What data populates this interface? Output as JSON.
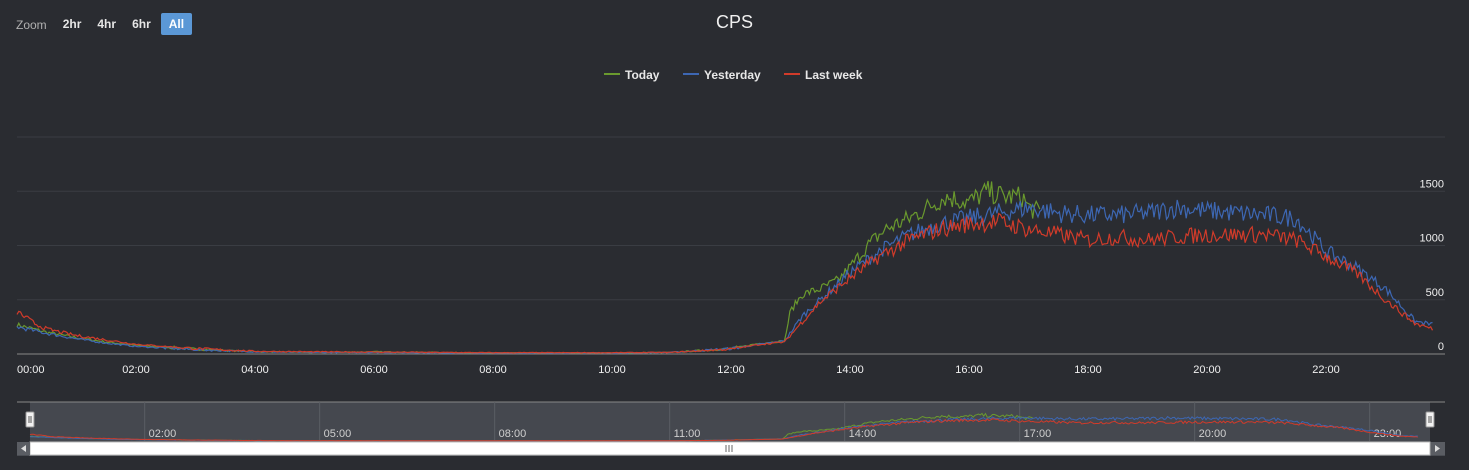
{
  "zoom": {
    "label": "Zoom",
    "buttons": [
      "2hr",
      "4hr",
      "6hr",
      "All"
    ],
    "active": "All"
  },
  "chart_data": {
    "type": "line",
    "title": "CPS",
    "xlabel": "",
    "ylabel": "",
    "x_ticks": [
      "00:00",
      "02:00",
      "04:00",
      "06:00",
      "08:00",
      "10:00",
      "12:00",
      "14:00",
      "16:00",
      "18:00",
      "20:00",
      "22:00"
    ],
    "y_ticks": [
      0,
      500,
      1000,
      1500
    ],
    "ylim": [
      0,
      2000
    ],
    "xlim_hours": [
      0,
      24
    ],
    "grid": true,
    "legend_position": "top-center",
    "navigator_ticks": [
      "02:00",
      "05:00",
      "08:00",
      "11:00",
      "14:00",
      "17:00",
      "20:00",
      "23:00"
    ],
    "series": [
      {
        "name": "Today",
        "color": "#6a9a2e",
        "x_hours": [
          0,
          0.5,
          1,
          1.5,
          2,
          3,
          4,
          5,
          6,
          7,
          8,
          9,
          10,
          11,
          12,
          12.5,
          12.9,
          13.0,
          13.2,
          13.5,
          13.8,
          14.0,
          14.3,
          14.6,
          15.0,
          15.3,
          15.6,
          16.0,
          16.3,
          16.6,
          16.9,
          17.0,
          17.2
        ],
        "values": [
          270,
          200,
          150,
          110,
          80,
          45,
          20,
          15,
          20,
          15,
          10,
          10,
          10,
          15,
          50,
          100,
          120,
          400,
          550,
          600,
          680,
          800,
          1000,
          1150,
          1250,
          1350,
          1450,
          1400,
          1500,
          1450,
          1450,
          1350,
          1300
        ]
      },
      {
        "name": "Yesterday",
        "color": "#3d67b3",
        "x_hours": [
          0,
          0.5,
          1,
          1.5,
          2,
          3,
          4,
          5,
          6,
          7,
          8,
          9,
          10,
          11,
          12,
          12.5,
          12.9,
          13.2,
          13.5,
          14.0,
          14.5,
          15.0,
          15.5,
          16.0,
          16.5,
          17.0,
          17.5,
          18.0,
          18.5,
          19.0,
          19.5,
          20.0,
          20.5,
          21.0,
          21.5,
          22.0,
          22.5,
          23.0,
          23.5,
          23.8
        ],
        "values": [
          250,
          190,
          140,
          100,
          70,
          40,
          20,
          15,
          15,
          12,
          10,
          10,
          10,
          15,
          50,
          90,
          120,
          350,
          500,
          750,
          950,
          1100,
          1200,
          1250,
          1300,
          1350,
          1300,
          1280,
          1280,
          1300,
          1350,
          1320,
          1300,
          1280,
          1250,
          950,
          800,
          600,
          300,
          270
        ]
      },
      {
        "name": "Last week",
        "color": "#d13b2a",
        "x_hours": [
          0,
          0.3,
          0.5,
          1,
          1.5,
          2,
          3,
          4,
          5,
          6,
          7,
          8,
          9,
          10,
          11,
          12,
          12.5,
          12.9,
          13.2,
          13.5,
          14.0,
          14.5,
          15.0,
          15.5,
          16.0,
          16.5,
          17.0,
          17.5,
          18.0,
          18.5,
          19.0,
          19.5,
          20.0,
          20.5,
          21.0,
          21.5,
          22.0,
          22.5,
          23.0,
          23.5,
          23.8
        ],
        "values": [
          390,
          280,
          230,
          170,
          130,
          90,
          50,
          25,
          20,
          18,
          15,
          12,
          12,
          12,
          15,
          45,
          90,
          110,
          300,
          480,
          700,
          900,
          1050,
          1150,
          1200,
          1220,
          1150,
          1100,
          1050,
          1080,
          1050,
          1080,
          1100,
          1100,
          1100,
          1050,
          900,
          750,
          500,
          280,
          230
        ]
      }
    ]
  }
}
